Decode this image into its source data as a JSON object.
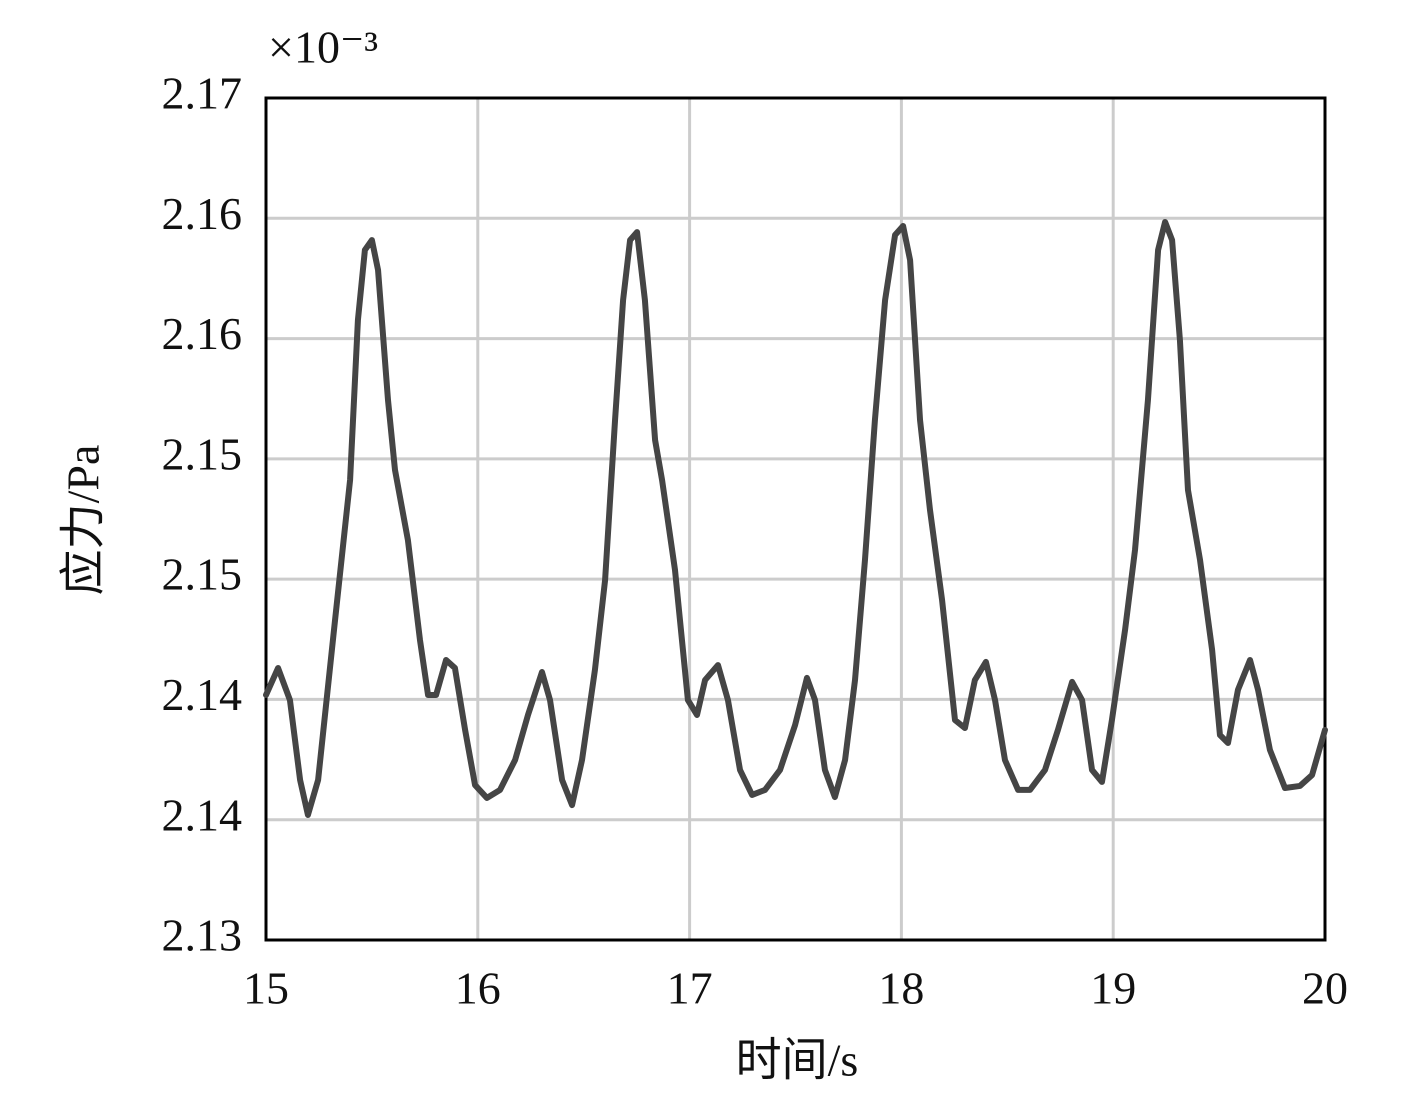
{
  "chart_data": {
    "type": "line",
    "x_label": "时间/s",
    "y_label": "应力/Pa",
    "y_multiplier": "×10⁻³",
    "xlim": [
      15,
      20
    ],
    "xticks": [
      15,
      16,
      17,
      18,
      19,
      20
    ],
    "ylim": [
      2.13,
      2.17
    ],
    "yticks": [
      2.13,
      {
        "value": 2.135714,
        "label": "2.14"
      },
      {
        "value": 2.141429,
        "label": "2.14"
      },
      {
        "value": 2.147143,
        "label": "2.15"
      },
      {
        "value": 2.152857,
        "label": "2.15"
      },
      {
        "value": 2.158571,
        "label": "2.16"
      },
      {
        "value": 2.164286,
        "label": "2.16"
      },
      2.17
    ],
    "grid": true,
    "x": [
      15.0,
      15.057,
      15.113,
      15.161,
      15.198,
      15.246,
      15.326,
      15.397,
      15.434,
      15.467,
      15.5,
      15.529,
      15.576,
      15.609,
      15.67,
      15.727,
      15.765,
      15.803,
      15.85,
      15.892,
      15.94,
      15.987,
      16.043,
      16.105,
      16.176,
      16.237,
      16.303,
      16.341,
      16.398,
      16.445,
      16.492,
      16.553,
      16.601,
      16.648,
      16.686,
      16.719,
      16.752,
      16.789,
      16.837,
      16.87,
      16.931,
      16.992,
      17.035,
      17.073,
      17.134,
      17.181,
      17.238,
      17.295,
      17.356,
      17.427,
      17.498,
      17.554,
      17.592,
      17.639,
      17.686,
      17.734,
      17.781,
      17.828,
      17.875,
      17.923,
      17.97,
      18.008,
      18.041,
      18.088,
      18.135,
      18.192,
      18.253,
      18.3,
      18.347,
      18.399,
      18.442,
      18.489,
      18.551,
      18.607,
      18.678,
      18.739,
      18.806,
      18.853,
      18.9,
      18.947,
      18.994,
      19.056,
      19.103,
      19.164,
      19.212,
      19.245,
      19.278,
      19.315,
      19.353,
      19.41,
      19.467,
      19.504,
      19.542,
      19.589,
      19.646,
      19.684,
      19.74,
      19.811,
      19.882,
      19.939,
      20.0
    ],
    "series": [
      {
        "color": "#454545",
        "values": [
          2.14164,
          2.14292,
          2.1414,
          2.1376,
          2.13594,
          2.1376,
          2.1452,
          2.15185,
          2.15945,
          2.16278,
          2.16325,
          2.16183,
          2.15565,
          2.15233,
          2.149,
          2.14425,
          2.14164,
          2.14164,
          2.1433,
          2.14292,
          2.13998,
          2.13736,
          2.13675,
          2.13713,
          2.13855,
          2.14069,
          2.14273,
          2.1414,
          2.1376,
          2.13641,
          2.13855,
          2.14283,
          2.1471,
          2.1547,
          2.1604,
          2.16325,
          2.16363,
          2.1604,
          2.15375,
          2.15185,
          2.14758,
          2.1414,
          2.14069,
          2.14235,
          2.14306,
          2.1414,
          2.13808,
          2.13689,
          2.13713,
          2.13808,
          2.14021,
          2.14245,
          2.1414,
          2.13808,
          2.13679,
          2.13855,
          2.14235,
          2.14805,
          2.1547,
          2.1604,
          2.16349,
          2.16392,
          2.1623,
          2.1547,
          2.15043,
          2.14615,
          2.14045,
          2.14007,
          2.14235,
          2.14321,
          2.1414,
          2.13855,
          2.13713,
          2.13713,
          2.13808,
          2.13998,
          2.14226,
          2.1414,
          2.13808,
          2.13751,
          2.14045,
          2.14473,
          2.14853,
          2.15565,
          2.16278,
          2.16411,
          2.16325,
          2.1585,
          2.15138,
          2.14805,
          2.14378,
          2.13974,
          2.13936,
          2.14188,
          2.1433,
          2.14188,
          2.13903,
          2.13722,
          2.13732,
          2.13784,
          2.13998
        ]
      }
    ]
  }
}
